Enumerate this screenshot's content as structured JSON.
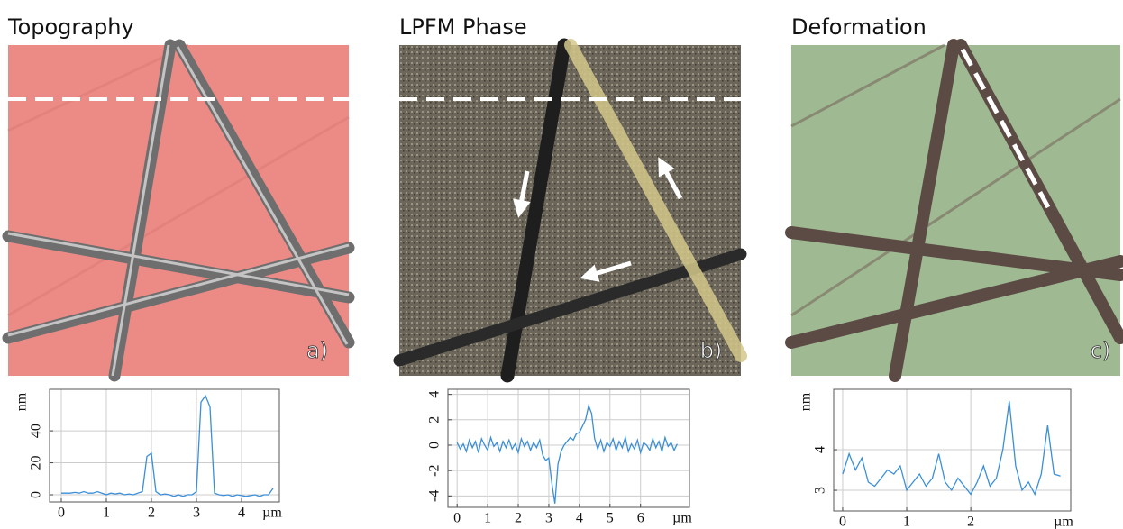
{
  "panels": [
    {
      "title": "Topography",
      "label": "a)"
    },
    {
      "title": "LPFM Phase",
      "label": "b)"
    },
    {
      "title": "Deformation",
      "label": "c)"
    }
  ],
  "chart_data": [
    {
      "type": "line",
      "ylabel": "nm",
      "xlabel": "µm",
      "color": "#3a8fd8",
      "grid": true,
      "xlim": [
        -0.26,
        4.84
      ],
      "ylim": [
        -4.5,
        66
      ],
      "xticks": [
        0,
        1,
        2,
        3,
        4
      ],
      "yticks": [
        0,
        20,
        40
      ],
      "x": [
        0,
        0.1,
        0.2,
        0.3,
        0.4,
        0.5,
        0.6,
        0.7,
        0.8,
        0.9,
        1,
        1.1,
        1.2,
        1.3,
        1.4,
        1.5,
        1.6,
        1.7,
        1.8,
        1.9,
        2,
        2.1,
        2.2,
        2.3,
        2.4,
        2.5,
        2.6,
        2.7,
        2.8,
        2.9,
        3,
        3.1,
        3.2,
        3.3,
        3.4,
        3.5,
        3.6,
        3.7,
        3.8,
        3.9,
        4,
        4.1,
        4.2,
        4.3,
        4.4,
        4.5,
        4.6,
        4.7
      ],
      "values": [
        1,
        1,
        1,
        1.5,
        1,
        2,
        1,
        1,
        2,
        1,
        0,
        1,
        0.5,
        1,
        0,
        0.5,
        0,
        1,
        2,
        24,
        26,
        2,
        0,
        0.5,
        0,
        -1,
        0,
        -1,
        0,
        0,
        2,
        58,
        62,
        55,
        1,
        0,
        -0.5,
        0,
        -1,
        0,
        -0.5,
        -1,
        -0.5,
        0,
        -1,
        0,
        0,
        4
      ]
    },
    {
      "type": "line",
      "xlabel": "µm",
      "color": "#3a8fd8",
      "grid": true,
      "xlim": [
        -0.3,
        7.6
      ],
      "ylim": [
        -4.9,
        4.4
      ],
      "xticks": [
        0,
        1,
        2,
        3,
        4,
        5,
        6
      ],
      "yticks": [
        -4,
        -2,
        0,
        2,
        4
      ],
      "x": [
        0,
        0.1,
        0.2,
        0.3,
        0.4,
        0.5,
        0.6,
        0.7,
        0.8,
        0.9,
        1,
        1.1,
        1.2,
        1.3,
        1.4,
        1.5,
        1.6,
        1.7,
        1.8,
        1.9,
        2,
        2.1,
        2.2,
        2.3,
        2.4,
        2.5,
        2.6,
        2.7,
        2.8,
        2.9,
        3,
        3.1,
        3.2,
        3.3,
        3.4,
        3.5,
        3.6,
        3.7,
        3.8,
        3.9,
        4,
        4.1,
        4.2,
        4.3,
        4.4,
        4.5,
        4.6,
        4.7,
        4.8,
        4.9,
        5,
        5.1,
        5.2,
        5.3,
        5.4,
        5.5,
        5.6,
        5.7,
        5.8,
        5.9,
        6,
        6.1,
        6.2,
        6.3,
        6.4,
        6.5,
        6.6,
        6.7,
        6.8,
        6.9,
        7,
        7.1,
        7.2
      ],
      "values": [
        0.2,
        -0.3,
        0.1,
        -0.5,
        0.4,
        -0.2,
        0.3,
        -0.6,
        0.5,
        0,
        -0.4,
        0.6,
        -0.1,
        0.2,
        -0.5,
        0.3,
        -0.2,
        0.4,
        -0.3,
        0.1,
        -0.6,
        0.5,
        -0.1,
        0.3,
        -0.4,
        0.2,
        -0.2,
        0.4,
        -0.8,
        -1.2,
        -1,
        -3,
        -4.6,
        -1.5,
        -0.5,
        0,
        0.3,
        0.6,
        0.4,
        0.9,
        1,
        1.5,
        2,
        3.1,
        2.5,
        0.5,
        -0.3,
        0.4,
        -0.5,
        0.2,
        -0.1,
        0.5,
        -0.4,
        0.3,
        -0.2,
        0.6,
        -0.5,
        0.1,
        -0.3,
        0.4,
        -0.6,
        0.2,
        0,
        -0.4,
        0.5,
        -0.2,
        0.3,
        -0.5,
        0.6,
        -0.1,
        0.2,
        -0.4,
        0.1
      ]
    },
    {
      "type": "line",
      "ylabel": "nm",
      "xlabel": "µm",
      "color": "#3a8fd8",
      "grid": true,
      "xlim": [
        -0.14,
        3.56
      ],
      "ylim": [
        2.49,
        5.49
      ],
      "xticks": [
        0,
        1,
        2
      ],
      "yticks": [
        3,
        4
      ],
      "x": [
        0,
        0.1,
        0.2,
        0.3,
        0.4,
        0.5,
        0.6,
        0.7,
        0.8,
        0.9,
        1,
        1.1,
        1.2,
        1.3,
        1.4,
        1.5,
        1.6,
        1.7,
        1.8,
        1.9,
        2,
        2.1,
        2.2,
        2.3,
        2.4,
        2.5,
        2.6,
        2.7,
        2.8,
        2.9,
        3,
        3.1,
        3.2,
        3.3,
        3.4
      ],
      "values": [
        3.4,
        3.9,
        3.5,
        3.8,
        3.2,
        3.1,
        3.3,
        3.5,
        3.4,
        3.6,
        3.0,
        3.2,
        3.4,
        3.1,
        3.3,
        3.9,
        3.2,
        3.0,
        3.3,
        3.1,
        2.9,
        3.2,
        3.6,
        3.1,
        3.3,
        4.0,
        5.2,
        3.6,
        3.0,
        3.2,
        2.9,
        3.4,
        4.6,
        3.4,
        3.35
      ]
    }
  ]
}
